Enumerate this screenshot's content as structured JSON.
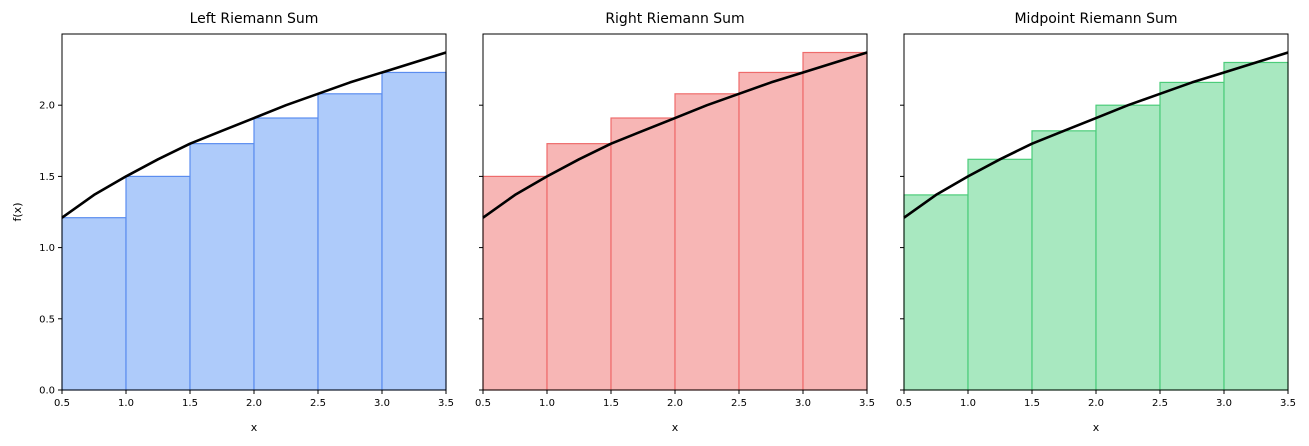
{
  "chart_data": [
    {
      "type": "bar",
      "title": "Left Riemann Sum",
      "xlabel": "x",
      "ylabel": "f(x)",
      "xlim": [
        0.5,
        3.5
      ],
      "ylim": [
        0,
        2.5
      ],
      "xticks": [
        "0.5",
        "1.0",
        "1.5",
        "2.0",
        "2.5",
        "3.0",
        "3.5"
      ],
      "yticks": [
        "0.0",
        "0.5",
        "1.0",
        "1.5",
        "2.0"
      ],
      "show_ytick_labels": true,
      "grid": false,
      "bar_color": "#aecbfa",
      "bar_edge_color": "#5b8def",
      "bins": [
        [
          0.5,
          1.0
        ],
        [
          1.0,
          1.5
        ],
        [
          1.5,
          2.0
        ],
        [
          2.0,
          2.5
        ],
        [
          2.5,
          3.0
        ],
        [
          3.0,
          3.5
        ]
      ],
      "values": [
        1.21,
        1.5,
        1.73,
        1.91,
        2.08,
        2.23
      ],
      "curve": {
        "color": "#000000",
        "x": [
          0.5,
          0.75,
          1.0,
          1.25,
          1.5,
          1.75,
          2.0,
          2.25,
          2.5,
          2.75,
          3.0,
          3.25,
          3.5
        ],
        "y": [
          1.21,
          1.37,
          1.5,
          1.62,
          1.73,
          1.82,
          1.91,
          2.0,
          2.08,
          2.16,
          2.23,
          2.3,
          2.37
        ]
      }
    },
    {
      "type": "bar",
      "title": "Right Riemann Sum",
      "xlabel": "x",
      "ylabel": "",
      "xlim": [
        0.5,
        3.5
      ],
      "ylim": [
        0,
        2.5
      ],
      "xticks": [
        "0.5",
        "1.0",
        "1.5",
        "2.0",
        "2.5",
        "3.0",
        "3.5"
      ],
      "yticks": [
        "0.0",
        "0.5",
        "1.0",
        "1.5",
        "2.0"
      ],
      "show_ytick_labels": false,
      "grid": false,
      "bar_color": "#f7b6b5",
      "bar_edge_color": "#ee6b6b",
      "bins": [
        [
          0.5,
          1.0
        ],
        [
          1.0,
          1.5
        ],
        [
          1.5,
          2.0
        ],
        [
          2.0,
          2.5
        ],
        [
          2.5,
          3.0
        ],
        [
          3.0,
          3.5
        ]
      ],
      "values": [
        1.5,
        1.73,
        1.91,
        2.08,
        2.23,
        2.37
      ],
      "curve": {
        "color": "#000000",
        "x": [
          0.5,
          0.75,
          1.0,
          1.25,
          1.5,
          1.75,
          2.0,
          2.25,
          2.5,
          2.75,
          3.0,
          3.25,
          3.5
        ],
        "y": [
          1.21,
          1.37,
          1.5,
          1.62,
          1.73,
          1.82,
          1.91,
          2.0,
          2.08,
          2.16,
          2.23,
          2.3,
          2.37
        ]
      }
    },
    {
      "type": "bar",
      "title": "Midpoint Riemann Sum",
      "xlabel": "x",
      "ylabel": "",
      "xlim": [
        0.5,
        3.5
      ],
      "ylim": [
        0,
        2.5
      ],
      "xticks": [
        "0.5",
        "1.0",
        "1.5",
        "2.0",
        "2.5",
        "3.0",
        "3.5"
      ],
      "yticks": [
        "0.0",
        "0.5",
        "1.0",
        "1.5",
        "2.0"
      ],
      "show_ytick_labels": false,
      "grid": false,
      "bar_color": "#a8e8c0",
      "bar_edge_color": "#4ccc7a",
      "bins": [
        [
          0.5,
          1.0
        ],
        [
          1.0,
          1.5
        ],
        [
          1.5,
          2.0
        ],
        [
          2.0,
          2.5
        ],
        [
          2.5,
          3.0
        ],
        [
          3.0,
          3.5
        ]
      ],
      "values": [
        1.37,
        1.62,
        1.82,
        2.0,
        2.16,
        2.3
      ],
      "curve": {
        "color": "#000000",
        "x": [
          0.5,
          0.75,
          1.0,
          1.25,
          1.5,
          1.75,
          2.0,
          2.25,
          2.5,
          2.75,
          3.0,
          3.25,
          3.5
        ],
        "y": [
          1.21,
          1.37,
          1.5,
          1.62,
          1.73,
          1.82,
          1.91,
          2.0,
          2.08,
          2.16,
          2.23,
          2.3,
          2.37
        ]
      }
    }
  ]
}
